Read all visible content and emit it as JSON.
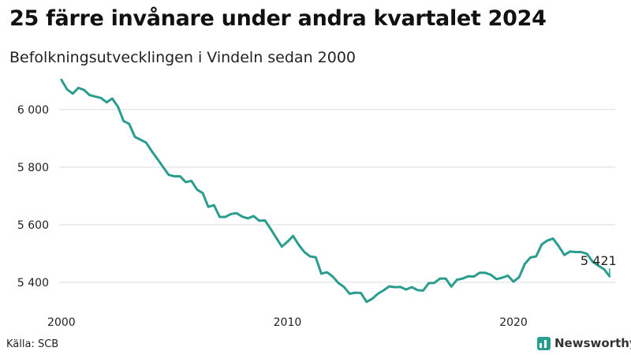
{
  "header": {
    "title": "25 färre invånare under andra kvartalet 2024",
    "subtitle": "Befolkningsutvecklingen i Vindeln sedan 2000"
  },
  "footer": {
    "source": "Källa: SCB",
    "brand": "Newsworthy"
  },
  "colors": {
    "line": "#2a9d8f",
    "grid": "#dddddd",
    "text": "#222222"
  },
  "chart_data": {
    "type": "line",
    "title": "25 färre invånare under andra kvartalet 2024",
    "subtitle": "Befolkningsutvecklingen i Vindeln sedan 2000",
    "xlabel": "",
    "ylabel": "",
    "xlim": [
      1999.9,
      2024.5
    ],
    "ylim": [
      5290,
      6120
    ],
    "x_ticks": [
      {
        "value": 2000,
        "label": "2000"
      },
      {
        "value": 2010,
        "label": "2010"
      },
      {
        "value": 2020,
        "label": "2020"
      }
    ],
    "y_ticks": [
      {
        "value": 5400,
        "label": "5 400"
      },
      {
        "value": 5600,
        "label": "5 600"
      },
      {
        "value": 5800,
        "label": "5 800"
      },
      {
        "value": 6000,
        "label": "6 000"
      }
    ],
    "grid": true,
    "legend": "none",
    "end_label": "5 421",
    "series": [
      {
        "x": [
          2000.0,
          2000.25,
          2000.5,
          2000.75,
          2001.0,
          2001.25,
          2001.5,
          2001.75,
          2002.0,
          2002.25,
          2002.5,
          2002.75,
          2003.0,
          2003.25,
          2003.5,
          2003.75,
          2004.0,
          2004.25,
          2004.5,
          2004.75,
          2005.0,
          2005.25,
          2005.5,
          2005.75,
          2006.0,
          2006.25,
          2006.5,
          2006.75,
          2007.0,
          2007.25,
          2007.5,
          2007.75,
          2008.0,
          2008.25,
          2008.5,
          2008.75,
          2009.0,
          2009.25,
          2009.5,
          2009.75,
          2010.0,
          2010.25,
          2010.5,
          2010.75,
          2011.0,
          2011.25,
          2011.5,
          2011.75,
          2012.0,
          2012.25,
          2012.5,
          2012.75,
          2013.0,
          2013.25,
          2013.5,
          2013.75,
          2014.0,
          2014.25,
          2014.5,
          2014.75,
          2015.0,
          2015.25,
          2015.5,
          2015.75,
          2016.0,
          2016.25,
          2016.5,
          2016.75,
          2017.0,
          2017.25,
          2017.5,
          2017.75,
          2018.0,
          2018.25,
          2018.5,
          2018.75,
          2019.0,
          2019.25,
          2019.5,
          2019.75,
          2020.0,
          2020.25,
          2020.5,
          2020.75,
          2021.0,
          2021.25,
          2021.5,
          2021.75,
          2022.0,
          2022.25,
          2022.5,
          2022.75,
          2023.0,
          2023.25,
          2023.5,
          2023.75,
          2024.0,
          2024.25
        ],
        "values": [
          6103,
          6070,
          6055,
          6075,
          6068,
          6050,
          6045,
          6040,
          6025,
          6038,
          6010,
          5960,
          5950,
          5905,
          5895,
          5885,
          5855,
          5828,
          5800,
          5773,
          5768,
          5768,
          5748,
          5752,
          5722,
          5710,
          5662,
          5668,
          5627,
          5627,
          5637,
          5640,
          5628,
          5622,
          5630,
          5614,
          5615,
          5586,
          5555,
          5524,
          5541,
          5561,
          5530,
          5505,
          5490,
          5487,
          5430,
          5435,
          5420,
          5398,
          5384,
          5360,
          5364,
          5363,
          5332,
          5343,
          5360,
          5372,
          5386,
          5383,
          5384,
          5375,
          5383,
          5373,
          5371,
          5397,
          5398,
          5413,
          5413,
          5385,
          5409,
          5413,
          5421,
          5420,
          5433,
          5433,
          5426,
          5411,
          5416,
          5423,
          5402,
          5418,
          5464,
          5486,
          5490,
          5532,
          5545,
          5552,
          5525,
          5495,
          5507,
          5505,
          5505,
          5499,
          5472,
          5458,
          5446,
          5421
        ]
      }
    ]
  }
}
